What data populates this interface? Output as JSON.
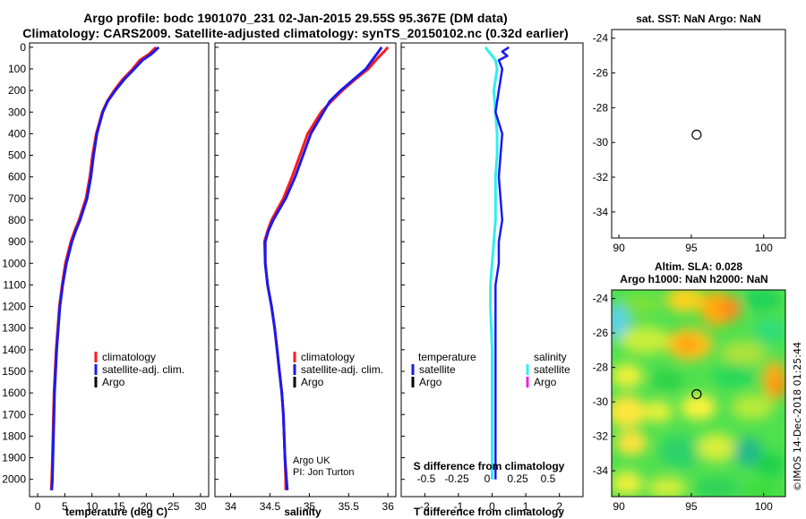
{
  "header": {
    "title_line1": "Argo profile: bodc 1901070_231 02-Jan-2015 29.55S 95.367E (DM data)",
    "title_line2": "Climatology: CARS2009. Satellite-adjusted climatology: synTS_20150102.nc (0.32d earlier)"
  },
  "colors": {
    "climatology": "#ff1a1a",
    "satellite": "#1a1aee",
    "argo": "#000000",
    "sat_salinity": "#33eeee",
    "argo_salinity": "#ee22ee"
  },
  "legend": {
    "climatology": "climatology",
    "satellite_adj": "satellite-adj. clim.",
    "argo": "Argo",
    "temperature_head": "temperature",
    "salinity_head": "salinity",
    "satellite": "satellite"
  },
  "credit": {
    "line1": "Argo UK",
    "line2": "PI: Jon Turton"
  },
  "stamp": "©IMOS 14-Dec-2018 01:25:44",
  "chart_data": [
    {
      "type": "line",
      "title": "",
      "xlabel": "temperature (deg C)",
      "ylabel": "",
      "xlim": [
        -1.5,
        31.5
      ],
      "ylim": [
        2080,
        -20
      ],
      "xticks": [
        0,
        5,
        10,
        15,
        20,
        25,
        30
      ],
      "yticks": [
        0,
        100,
        200,
        300,
        400,
        500,
        600,
        700,
        800,
        900,
        1000,
        1100,
        1200,
        1300,
        1400,
        1500,
        1600,
        1700,
        1800,
        1900,
        2000
      ],
      "series": [
        {
          "name": "climatology",
          "depth": [
            0,
            30,
            60,
            100,
            150,
            200,
            250,
            300,
            400,
            500,
            600,
            700,
            800,
            850,
            900,
            1000,
            1100,
            1200,
            1300,
            1400,
            1500,
            1600,
            1700,
            1800,
            1900,
            2000,
            2050
          ],
          "values": [
            21.8,
            20.6,
            18.8,
            17.5,
            15.6,
            14.1,
            12.8,
            11.9,
            10.8,
            10.1,
            9.6,
            8.9,
            7.6,
            6.8,
            6.1,
            5.1,
            4.5,
            4.0,
            3.7,
            3.4,
            3.2,
            3.0,
            2.9,
            2.8,
            2.7,
            2.6,
            2.5
          ]
        },
        {
          "name": "satellite-adj. clim.",
          "depth": [
            0,
            30,
            60,
            100,
            150,
            200,
            250,
            300,
            400,
            500,
            600,
            700,
            800,
            850,
            900,
            1000,
            1100,
            1200,
            1300,
            1400,
            1500,
            1600,
            1700,
            1800,
            1900,
            2000,
            2050
          ],
          "values": [
            22.3,
            21.0,
            19.3,
            17.8,
            15.9,
            14.3,
            12.9,
            12.0,
            10.9,
            10.3,
            9.8,
            9.1,
            7.8,
            7.0,
            6.3,
            5.3,
            4.6,
            4.1,
            3.8,
            3.5,
            3.3,
            3.1,
            3.0,
            2.9,
            2.8,
            2.7,
            2.6
          ]
        }
      ]
    },
    {
      "type": "line",
      "xlabel": "salinity",
      "xlim": [
        33.8,
        36.1
      ],
      "ylim": [
        2080,
        -20
      ],
      "xticks": [
        34,
        34.5,
        35,
        35.5,
        36
      ],
      "series": [
        {
          "name": "climatology",
          "depth": [
            0,
            20,
            50,
            100,
            150,
            200,
            250,
            300,
            400,
            500,
            600,
            700,
            800,
            850,
            900,
            1000,
            1100,
            1200,
            1300,
            1400,
            1500,
            1600,
            1700,
            1800,
            1900,
            2000,
            2050
          ],
          "values": [
            36.0,
            35.95,
            35.87,
            35.75,
            35.58,
            35.42,
            35.28,
            35.15,
            34.98,
            34.88,
            34.78,
            34.67,
            34.52,
            34.47,
            34.43,
            34.44,
            34.47,
            34.52,
            34.56,
            34.59,
            34.62,
            34.65,
            34.67,
            34.68,
            34.69,
            34.7,
            34.7
          ]
        },
        {
          "name": "satellite-adj. clim.",
          "depth": [
            0,
            20,
            50,
            100,
            150,
            200,
            250,
            300,
            400,
            500,
            600,
            700,
            800,
            850,
            900,
            1000,
            1100,
            1200,
            1300,
            1400,
            1500,
            1600,
            1700,
            1800,
            1900,
            2000,
            2050
          ],
          "values": [
            35.92,
            35.88,
            35.82,
            35.72,
            35.56,
            35.4,
            35.26,
            35.18,
            35.02,
            34.92,
            34.82,
            34.7,
            34.54,
            34.48,
            34.44,
            34.44,
            34.47,
            34.52,
            34.56,
            34.59,
            34.62,
            34.65,
            34.67,
            34.68,
            34.69,
            34.71,
            34.72
          ]
        }
      ]
    },
    {
      "type": "line",
      "xlabel": "T difference from climatology",
      "xlabel_top": "S difference from climatology",
      "xlim": [
        -2.7,
        2.7
      ],
      "ylim": [
        2080,
        -20
      ],
      "xticks": [
        -2,
        -1,
        0,
        1,
        2
      ],
      "xticks_S": [
        "-0.5",
        "-0.25",
        "0",
        "0.25",
        "0.5"
      ],
      "series": [
        {
          "name": "temperature satellite",
          "depth": [
            0,
            20,
            40,
            60,
            100,
            150,
            200,
            300,
            400,
            500,
            600,
            700,
            800,
            900,
            1000,
            1100,
            1200,
            1400,
            1600,
            1800,
            2000
          ],
          "values": [
            0.5,
            0.3,
            0.45,
            0.2,
            0.3,
            0.25,
            0.2,
            0.1,
            0.3,
            0.25,
            0.2,
            0.25,
            0.3,
            0.2,
            0.2,
            0.1,
            0.1,
            0.1,
            0.1,
            0.1,
            0.1
          ]
        },
        {
          "name": "salinity satellite",
          "depth": [
            0,
            20,
            40,
            60,
            100,
            150,
            200,
            300,
            400,
            500,
            600,
            700,
            800,
            900,
            1000,
            1100,
            1200,
            1400,
            1600,
            1800,
            2000
          ],
          "values": [
            -0.2,
            -0.1,
            0.0,
            0.1,
            0.15,
            0.1,
            0.05,
            0.1,
            0.15,
            0.15,
            0.1,
            0.1,
            0.1,
            0.05,
            0.0,
            -0.05,
            -0.05,
            0.0,
            0.0,
            0.0,
            0.0
          ]
        }
      ]
    },
    {
      "type": "scatter",
      "title": "sat. SST: NaN Argo: NaN",
      "xlim": [
        89.5,
        101.5
      ],
      "ylim": [
        -35.5,
        -23.5
      ],
      "xticks": [
        90,
        95,
        100
      ],
      "yticks": [
        -24,
        -26,
        -28,
        -30,
        -32,
        -34
      ],
      "x": [
        95.367
      ],
      "y": [
        -29.55
      ]
    },
    {
      "type": "heatmap",
      "title": "Altim. SLA: 0.028",
      "subtitle": "Argo h1000: NaN h2000: NaN",
      "xlim": [
        89.5,
        101.5
      ],
      "ylim": [
        -35.5,
        -23.5
      ],
      "xticks": [
        90,
        95,
        100
      ],
      "yticks": [
        -24,
        -26,
        -28,
        -30,
        -32,
        -34
      ],
      "x": [
        95.367
      ],
      "y": [
        -29.55
      ]
    }
  ]
}
